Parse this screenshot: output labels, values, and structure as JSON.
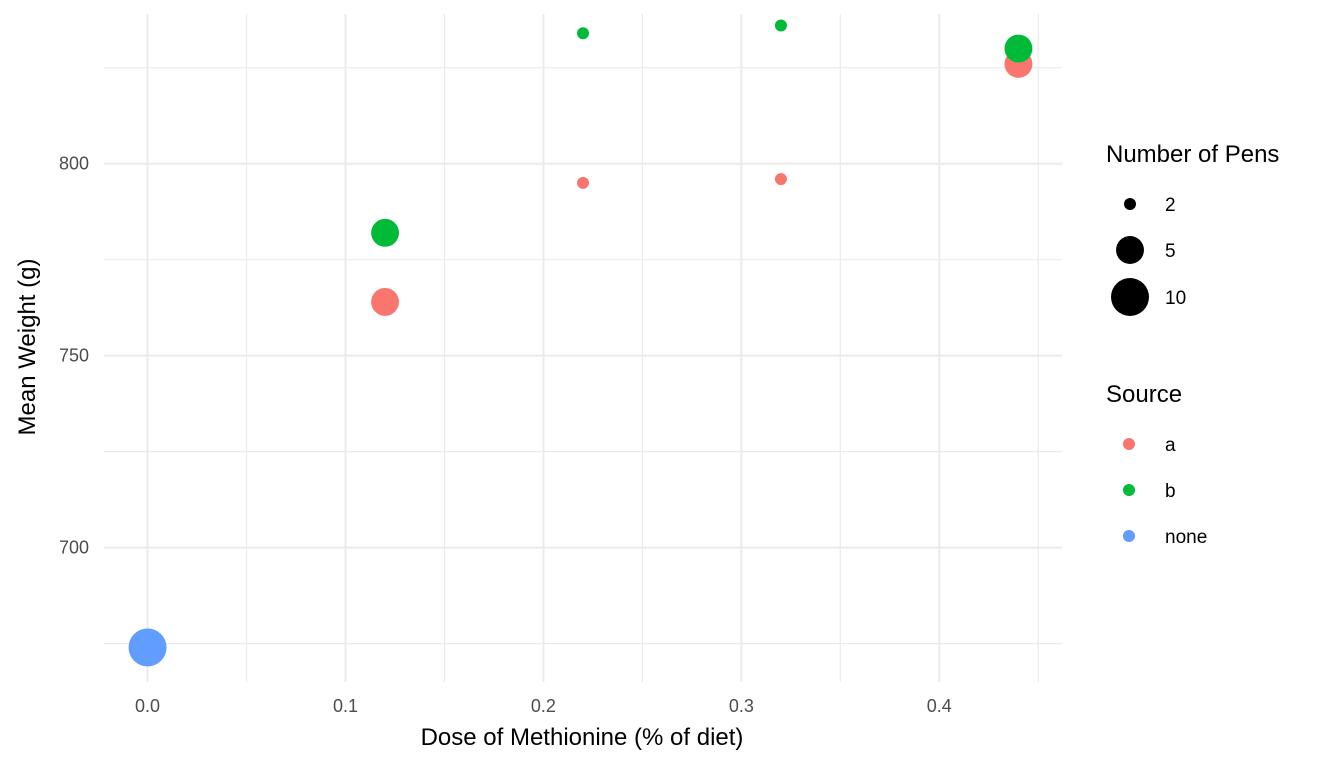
{
  "chart_data": {
    "type": "scatter",
    "xlabel": "Dose of Methionine (% of diet)",
    "ylabel": "Mean Weight (g)",
    "xlim": [
      -0.022,
      0.462
    ],
    "ylim": [
      665,
      839
    ],
    "x_ticks": [
      0.0,
      0.1,
      0.2,
      0.3,
      0.4
    ],
    "x_tick_labels": [
      "0.0",
      "0.1",
      "0.2",
      "0.3",
      "0.4"
    ],
    "y_ticks": [
      700,
      750,
      800
    ],
    "y_tick_labels": [
      "700",
      "750",
      "800"
    ],
    "grid": true,
    "legend_position": "right",
    "colors": {
      "a": "#F8766D",
      "b": "#00BA38",
      "none": "#619CFF"
    },
    "series": [
      {
        "name": "a",
        "color": "#F8766D",
        "points": [
          {
            "x": 0.12,
            "y": 764,
            "pens": 5
          },
          {
            "x": 0.22,
            "y": 795,
            "pens": 2
          },
          {
            "x": 0.32,
            "y": 796,
            "pens": 2
          },
          {
            "x": 0.44,
            "y": 826,
            "pens": 5
          }
        ]
      },
      {
        "name": "b",
        "color": "#00BA38",
        "points": [
          {
            "x": 0.12,
            "y": 782,
            "pens": 5
          },
          {
            "x": 0.22,
            "y": 834,
            "pens": 2
          },
          {
            "x": 0.32,
            "y": 836,
            "pens": 2
          },
          {
            "x": 0.44,
            "y": 830,
            "pens": 5
          }
        ]
      },
      {
        "name": "none",
        "color": "#619CFF",
        "points": [
          {
            "x": 0.0,
            "y": 674,
            "pens": 10
          }
        ]
      }
    ],
    "size_legend": {
      "title": "Number of Pens",
      "values": [
        2,
        5,
        10
      ],
      "labels": [
        "2",
        "5",
        "10"
      ]
    },
    "color_legend": {
      "title": "Source",
      "labels": [
        "a",
        "b",
        "none"
      ]
    }
  }
}
